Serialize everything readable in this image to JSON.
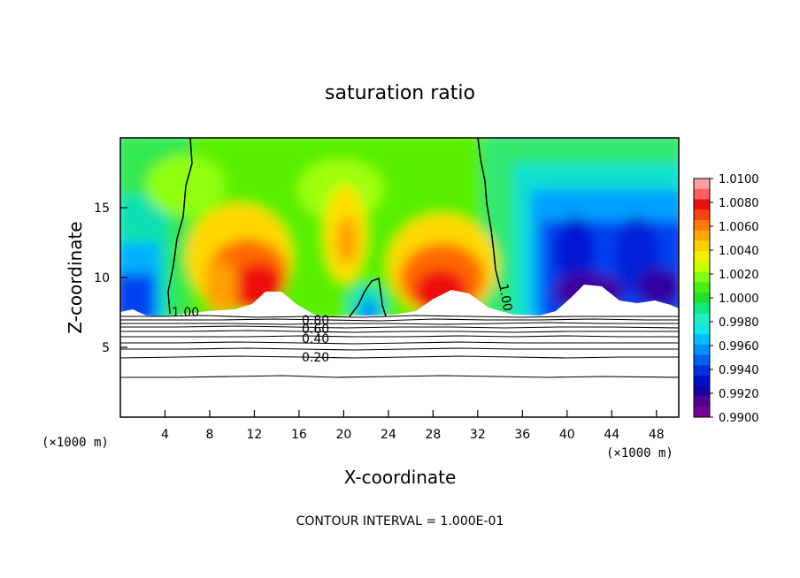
{
  "chart_data": {
    "type": "heatmap",
    "title": "saturation ratio",
    "xlabel": "X-coordinate",
    "ylabel": "Z-coordinate",
    "x_unit_left": "(×1000 m)",
    "x_unit_right": "(×1000 m)",
    "xlim": [
      0,
      50
    ],
    "ylim": [
      0,
      20
    ],
    "x_ticks": [
      "4",
      "8",
      "12",
      "16",
      "20",
      "24",
      "28",
      "32",
      "36",
      "40",
      "44",
      "48"
    ],
    "y_ticks": [
      "5",
      "10",
      "15"
    ],
    "colorbar": {
      "labels": [
        "1.0100",
        "1.0080",
        "1.0060",
        "1.0040",
        "1.0020",
        "1.0000",
        "0.9980",
        "0.9960",
        "0.9940",
        "0.9920",
        "0.9900"
      ],
      "colors": [
        "#ff9f9f",
        "#ff6060",
        "#e81010",
        "#ff4010",
        "#ff7a00",
        "#ffa800",
        "#ffd000",
        "#f0f000",
        "#c8ff00",
        "#80ff10",
        "#48f010",
        "#20e030",
        "#10e880",
        "#20f0c0",
        "#10e8e8",
        "#00c0ff",
        "#0090ff",
        "#0060f0",
        "#0030e0",
        "#0010c8",
        "#1800a8",
        "#500090",
        "#780090"
      ]
    },
    "contour_labels": [
      "1.00",
      "1.00",
      "0.80",
      "0.60",
      "0.40",
      "0.20"
    ],
    "footer": "CONTOUR INTERVAL = 1.000E-01"
  }
}
